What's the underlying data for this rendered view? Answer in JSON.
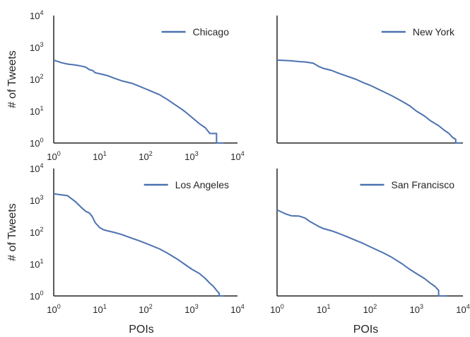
{
  "colors": {
    "line": "#4c72b0",
    "axis": "#262626"
  },
  "chart_data": [
    {
      "type": "line",
      "series": [
        {
          "name": "Chicago",
          "x": [
            1,
            1.5,
            2,
            3,
            4,
            5,
            6,
            7,
            8,
            10,
            15,
            20,
            30,
            50,
            70,
            100,
            200,
            300,
            500,
            700,
            1000,
            1500,
            2000,
            2500,
            3000,
            3500,
            3500,
            5000
          ],
          "y": [
            400,
            330,
            300,
            280,
            260,
            240,
            200,
            190,
            160,
            150,
            130,
            110,
            90,
            75,
            62,
            50,
            33,
            23,
            14,
            10,
            6.5,
            4,
            3,
            2,
            2,
            2,
            1,
            1
          ]
        }
      ],
      "xscale": "log",
      "yscale": "log",
      "xlim": [
        1,
        10000
      ],
      "ylim": [
        1,
        10000
      ],
      "xticks": [
        "1",
        "10",
        "100",
        "1000",
        "10000"
      ],
      "yticks": [
        "1",
        "10",
        "100",
        "1000",
        "10000"
      ],
      "tick_base": "10",
      "tick_exponents": [
        "0",
        "1",
        "2",
        "3",
        "4"
      ],
      "xlabel": "",
      "ylabel": "# of Tweets",
      "legend_position": "top-right",
      "grid": false
    },
    {
      "type": "line",
      "series": [
        {
          "name": "New York",
          "x": [
            1,
            2,
            3,
            4,
            6,
            8,
            10,
            15,
            20,
            30,
            50,
            70,
            100,
            200,
            300,
            500,
            700,
            1000,
            1500,
            2000,
            3000,
            4000,
            5000,
            6000,
            7000,
            7000,
            9000
          ],
          "y": [
            400,
            380,
            360,
            350,
            320,
            250,
            220,
            190,
            160,
            130,
            100,
            80,
            65,
            40,
            30,
            20,
            15,
            10,
            7,
            5,
            3.5,
            2.5,
            2,
            1.5,
            1.3,
            1,
            1
          ]
        }
      ],
      "xscale": "log",
      "yscale": "log",
      "xlim": [
        1,
        10000
      ],
      "ylim": [
        1,
        10000
      ],
      "xlabel": "",
      "ylabel": "",
      "legend_position": "top-right",
      "grid": false
    },
    {
      "type": "line",
      "series": [
        {
          "name": "Los Angeles",
          "x": [
            1,
            2,
            3,
            4,
            5,
            6,
            7,
            8,
            10,
            12,
            15,
            20,
            30,
            50,
            70,
            100,
            200,
            300,
            500,
            700,
            1000,
            1500,
            2000,
            2500,
            3000,
            3500,
            4000,
            4000,
            5000
          ],
          "y": [
            1600,
            1400,
            900,
            600,
            450,
            400,
            300,
            200,
            140,
            120,
            110,
            100,
            85,
            65,
            55,
            45,
            30,
            22,
            14,
            10,
            7,
            5,
            3.5,
            2.5,
            2,
            1.5,
            1.2,
            1,
            1
          ]
        }
      ],
      "xscale": "log",
      "yscale": "log",
      "xlim": [
        1,
        10000
      ],
      "ylim": [
        1,
        10000
      ],
      "xticks": [
        "1",
        "10",
        "100",
        "1000",
        "10000"
      ],
      "yticks": [
        "1",
        "10",
        "100",
        "1000",
        "10000"
      ],
      "xlabel": "POIs",
      "ylabel": "# of Tweets",
      "legend_position": "top-right",
      "grid": false
    },
    {
      "type": "line",
      "series": [
        {
          "name": "San Francisco",
          "x": [
            1,
            1.5,
            2,
            3,
            4,
            5,
            6,
            8,
            10,
            15,
            20,
            30,
            50,
            70,
            100,
            200,
            300,
            500,
            700,
            1000,
            1500,
            2000,
            2500,
            3000,
            3000,
            4500
          ],
          "y": [
            500,
            380,
            330,
            320,
            280,
            220,
            190,
            150,
            130,
            110,
            95,
            75,
            55,
            45,
            35,
            22,
            16,
            10,
            7,
            5,
            3.5,
            2.5,
            2,
            1.5,
            1,
            1
          ]
        }
      ],
      "xscale": "log",
      "yscale": "log",
      "xlim": [
        1,
        10000
      ],
      "ylim": [
        1,
        10000
      ],
      "xticks": [
        "1",
        "10",
        "100",
        "1000",
        "10000"
      ],
      "xlabel": "POIs",
      "ylabel": "",
      "legend_position": "top-right",
      "grid": false
    }
  ]
}
